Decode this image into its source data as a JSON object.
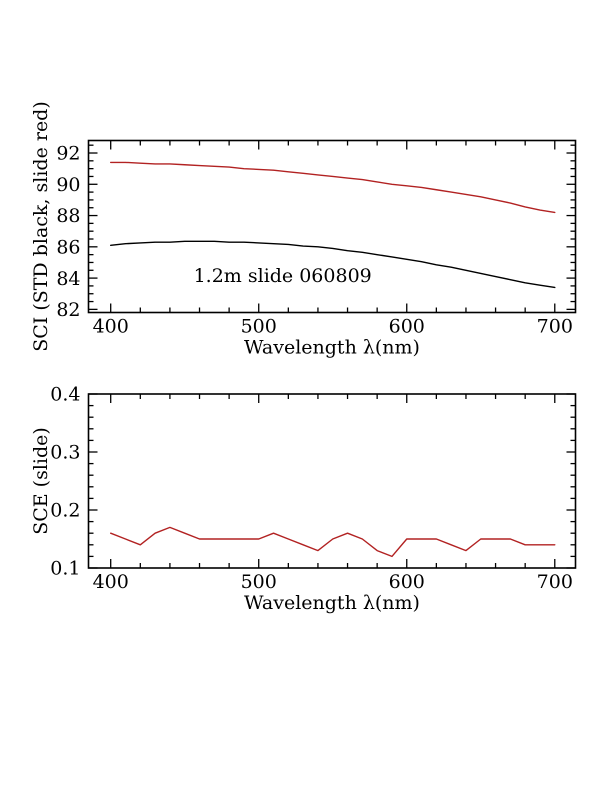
{
  "colors": {
    "background": "#ffffff",
    "axis": "#000000",
    "series_red": "#b22222",
    "series_black": "#000000"
  },
  "chart_data": [
    {
      "type": "line",
      "title": "",
      "xlabel": "Wavelength λ(nm)",
      "ylabel": "SCI (STD black, slide red)",
      "xlim": [
        385,
        714
      ],
      "ylim": [
        81.8,
        92.8
      ],
      "xticks": [
        400,
        500,
        600,
        700
      ],
      "xtick_labels": [
        "400",
        "500",
        "600",
        "700"
      ],
      "yticks": [
        82,
        84,
        86,
        88,
        90,
        92
      ],
      "ytick_labels": [
        "82",
        "84",
        "86",
        "88",
        "90",
        "92"
      ],
      "x_minor_step": 20,
      "y_minor_step": 0.5,
      "grid": false,
      "legend": "none",
      "annotation": {
        "text": "1.2m slide 060809",
        "x_nm": 456,
        "y_value": 83.75
      },
      "x": [
        400,
        410,
        420,
        430,
        440,
        450,
        460,
        470,
        480,
        490,
        500,
        510,
        520,
        530,
        540,
        550,
        560,
        570,
        580,
        590,
        600,
        610,
        620,
        630,
        640,
        650,
        660,
        670,
        680,
        690,
        700
      ],
      "series": [
        {
          "name": "slide (red)",
          "color": "#b22222",
          "values": [
            91.4,
            91.4,
            91.35,
            91.3,
            91.3,
            91.25,
            91.2,
            91.15,
            91.1,
            91.0,
            90.95,
            90.9,
            90.8,
            90.7,
            90.6,
            90.5,
            90.4,
            90.3,
            90.15,
            90.0,
            89.9,
            89.8,
            89.65,
            89.5,
            89.35,
            89.2,
            89.0,
            88.8,
            88.55,
            88.35,
            88.2
          ]
        },
        {
          "name": "STD (black)",
          "color": "#000000",
          "values": [
            86.1,
            86.2,
            86.25,
            86.3,
            86.3,
            86.35,
            86.35,
            86.35,
            86.3,
            86.3,
            86.25,
            86.2,
            86.15,
            86.05,
            86.0,
            85.9,
            85.75,
            85.65,
            85.5,
            85.35,
            85.2,
            85.05,
            84.85,
            84.7,
            84.5,
            84.3,
            84.1,
            83.9,
            83.7,
            83.55,
            83.4
          ]
        }
      ]
    },
    {
      "type": "line",
      "title": "",
      "xlabel": "Wavelength λ(nm)",
      "ylabel": "SCE (slide)",
      "xlim": [
        385,
        714
      ],
      "ylim": [
        0.1,
        0.4
      ],
      "xticks": [
        400,
        500,
        600,
        700
      ],
      "xtick_labels": [
        "400",
        "500",
        "600",
        "700"
      ],
      "yticks": [
        0.1,
        0.2,
        0.3,
        0.4
      ],
      "ytick_labels": [
        "0.1",
        "0.2",
        "0.3",
        "0.4"
      ],
      "x_minor_step": 20,
      "y_minor_step": 0.02,
      "grid": false,
      "legend": "none",
      "annotation": null,
      "x": [
        400,
        410,
        420,
        430,
        440,
        450,
        460,
        470,
        480,
        490,
        500,
        510,
        520,
        530,
        540,
        550,
        560,
        570,
        580,
        590,
        600,
        610,
        620,
        630,
        640,
        650,
        660,
        670,
        680,
        690,
        700
      ],
      "series": [
        {
          "name": "slide (red)",
          "color": "#b22222",
          "values": [
            0.16,
            0.15,
            0.14,
            0.16,
            0.17,
            0.16,
            0.15,
            0.15,
            0.15,
            0.15,
            0.15,
            0.16,
            0.15,
            0.14,
            0.13,
            0.15,
            0.16,
            0.15,
            0.13,
            0.12,
            0.15,
            0.15,
            0.15,
            0.14,
            0.13,
            0.15,
            0.15,
            0.15,
            0.14,
            0.14,
            0.14
          ]
        }
      ]
    }
  ]
}
